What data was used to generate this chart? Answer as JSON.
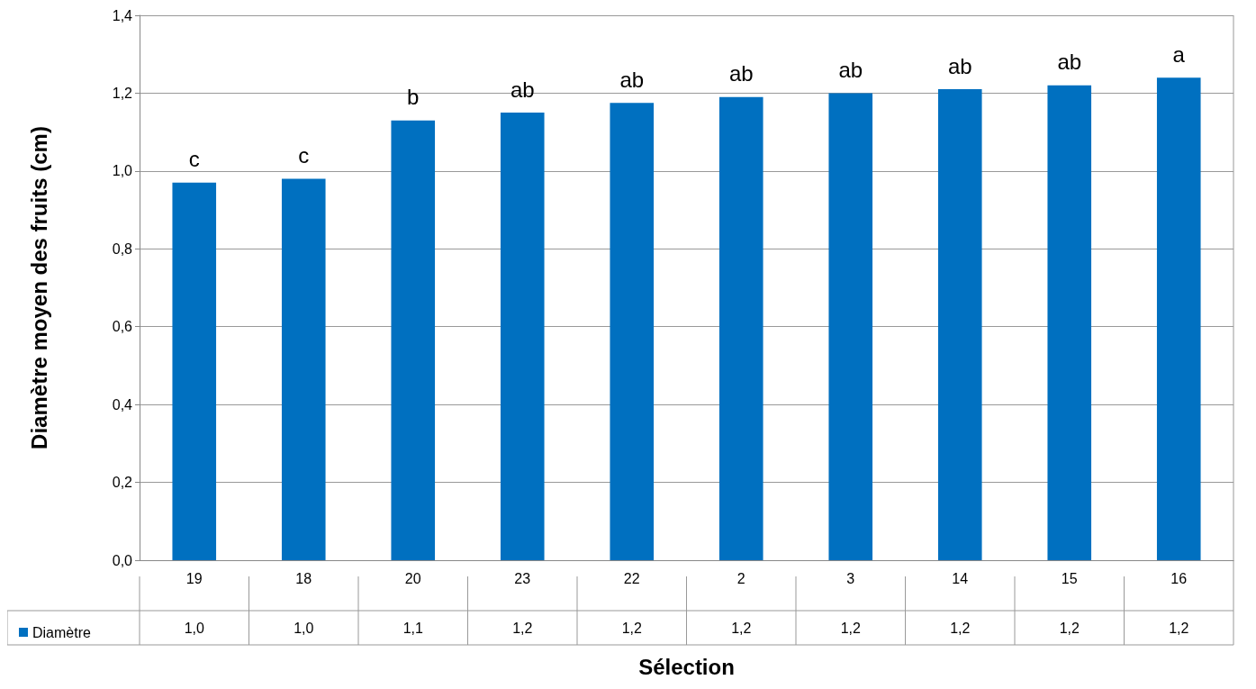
{
  "chart_data": {
    "type": "bar",
    "xlabel": "Sélection",
    "ylabel": "Diamètre moyen des fruits (cm)",
    "categories": [
      "19",
      "18",
      "20",
      "23",
      "22",
      "2",
      "3",
      "14",
      "15",
      "16"
    ],
    "series": [
      {
        "name": "Diamètre",
        "color": "#0070c0",
        "values": [
          0.97,
          0.98,
          1.13,
          1.15,
          1.175,
          1.19,
          1.2,
          1.21,
          1.22,
          1.24
        ],
        "value_labels": [
          "1,0",
          "1,0",
          "1,1",
          "1,2",
          "1,2",
          "1,2",
          "1,2",
          "1,2",
          "1,2",
          "1,2"
        ]
      }
    ],
    "ylim": [
      0,
      1.4
    ],
    "yticks": [
      {
        "value": 0,
        "label": "0,0"
      },
      {
        "value": 0.2,
        "label": "0,2"
      },
      {
        "value": 0.4,
        "label": "0,4"
      },
      {
        "value": 0.6,
        "label": "0,6"
      },
      {
        "value": 0.8,
        "label": "0,8"
      },
      {
        "value": 1,
        "label": "1,0"
      },
      {
        "value": 1.2,
        "label": "1,2"
      },
      {
        "value": 1.4,
        "label": "1,4"
      }
    ],
    "grid": "y",
    "legend": "bottom left",
    "annotations": [
      {
        "text": "c",
        "x": "19",
        "y": 0.97
      },
      {
        "text": "c",
        "x": "18",
        "y": 0.98
      },
      {
        "text": "b",
        "x": "20",
        "y": 1.13
      },
      {
        "text": "ab",
        "x": "23",
        "y": 1.15
      },
      {
        "text": "ab",
        "x": "22",
        "y": 1.175
      },
      {
        "text": "ab",
        "x": "2",
        "y": 1.19
      },
      {
        "text": "ab",
        "x": "3",
        "y": 1.2
      },
      {
        "text": "ab",
        "x": "14",
        "y": 1.21
      },
      {
        "text": "ab",
        "x": "15",
        "y": 1.22
      },
      {
        "text": "a",
        "x": "16",
        "y": 1.24
      }
    ]
  }
}
